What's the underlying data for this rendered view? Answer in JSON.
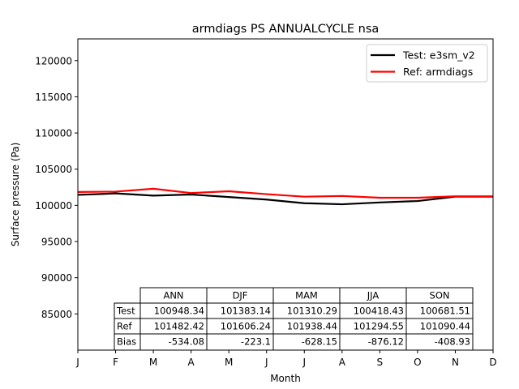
{
  "chart_data": {
    "type": "line",
    "title": "armdiags PS ANNUALCYCLE nsa",
    "xlabel": "Month",
    "ylabel": "Surface pressure (Pa)",
    "categories": [
      "J",
      "F",
      "M",
      "A",
      "M",
      "J",
      "J",
      "A",
      "S",
      "O",
      "N",
      "D"
    ],
    "ylim": [
      80000,
      123000
    ],
    "yticks": [
      85000,
      90000,
      95000,
      100000,
      105000,
      110000,
      115000,
      120000
    ],
    "ytick_labels": [
      "85000",
      "90000",
      "95000",
      "100000",
      "105000",
      "110000",
      "115000",
      "120000"
    ],
    "legend_position": "upper right",
    "series": [
      {
        "name": "Test: e3sm_v2",
        "color": "#000000",
        "values": [
          101450,
          101650,
          101350,
          101500,
          101150,
          100800,
          100300,
          100150,
          100400,
          100600,
          101200,
          101200
        ]
      },
      {
        "name": "Ref: armdiags",
        "color": "#ff0000",
        "values": [
          101850,
          101900,
          102300,
          101700,
          101950,
          101550,
          101200,
          101300,
          101050,
          101050,
          101250,
          101250
        ]
      }
    ],
    "table": {
      "columns": [
        "ANN",
        "DJF",
        "MAM",
        "JJA",
        "SON"
      ],
      "rows": [
        {
          "label": "Test",
          "values": [
            "100948.34",
            "101383.14",
            "101310.29",
            "100418.43",
            "100681.51"
          ]
        },
        {
          "label": "Ref",
          "values": [
            "101482.42",
            "101606.24",
            "101938.44",
            "101294.55",
            "101090.44"
          ]
        },
        {
          "label": "Bias",
          "values": [
            "-534.08",
            "-223.1",
            "-628.15",
            "-876.12",
            "-408.93"
          ]
        }
      ]
    }
  }
}
